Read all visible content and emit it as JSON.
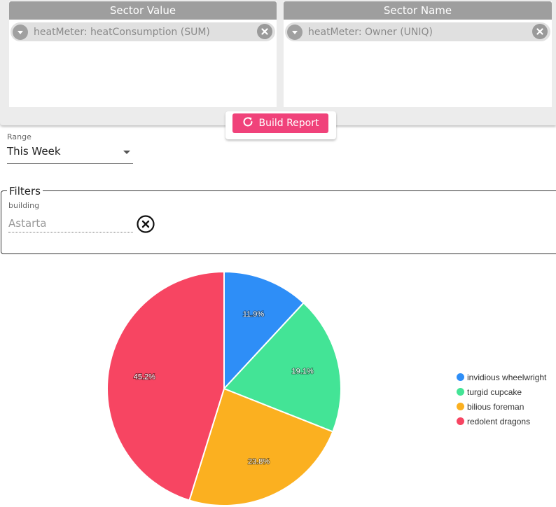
{
  "sector_value": {
    "header": "Sector Value",
    "chip_label": "heatMeter: heatConsumption (SUM)"
  },
  "sector_name": {
    "header": "Sector Name",
    "chip_label": "heatMeter: Owner (UNIQ)"
  },
  "build_button": {
    "label": "Build Report",
    "icon": "refresh-icon"
  },
  "range": {
    "label": "Range",
    "value": "This Week"
  },
  "filters": {
    "legend": "Filters",
    "field_label": "building",
    "field_placeholder": "Astarta",
    "clear_icon": "clear-circle-icon"
  },
  "colors": {
    "accent": "#f0427a",
    "header_gray": "#9e9e9e"
  },
  "chart_data": {
    "type": "pie",
    "slices": [
      {
        "name": "invidious wheelwright",
        "value": 11.9,
        "label": "11.9%",
        "color": "#2e8ef7"
      },
      {
        "name": "turgid cupcake",
        "value": 19.1,
        "label": "19.1%",
        "color": "#43e496"
      },
      {
        "name": "bilious foreman",
        "value": 23.8,
        "label": "23.8%",
        "color": "#fbb020"
      },
      {
        "name": "redolent dragons",
        "value": 45.2,
        "label": "45.2%",
        "color": "#f74562"
      }
    ],
    "start_angle": "12 o'clock",
    "direction": "clockwise",
    "legend_position": "right"
  }
}
